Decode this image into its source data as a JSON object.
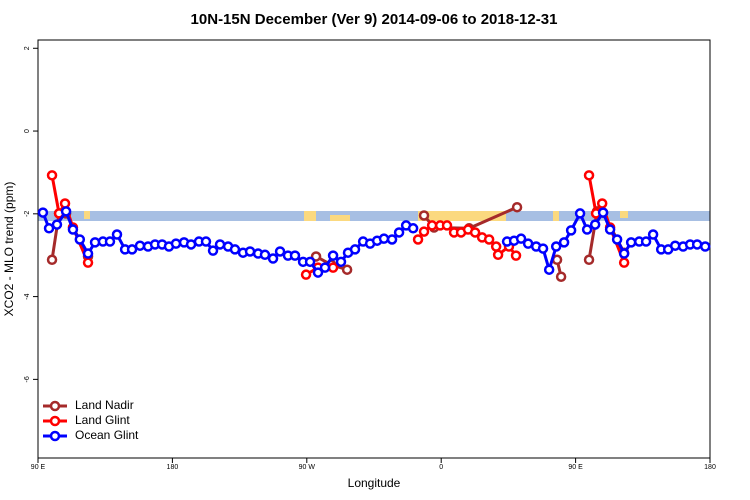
{
  "chart_data": {
    "type": "line",
    "title": "10N-15N December (Ver 9)   2014-09-06 to 2018-12-31",
    "x_label": "Longitude",
    "y_label": "XCO2 - MLO trend (ppm)",
    "xlim": [
      90,
      540
    ],
    "ylim": [
      -7.9,
      2.2
    ],
    "xticks": [
      {
        "value": 90,
        "label": "90 E"
      },
      180,
      {
        "value": 270,
        "label": "90 W"
      },
      {
        "value": 360,
        "label": "0"
      },
      {
        "value": 450,
        "label": "90 E"
      },
      {
        "value": 540,
        "label": "180"
      }
    ],
    "yticks": [
      2,
      0,
      -2,
      -4,
      -6
    ],
    "legend": "bottom-left",
    "series": [
      {
        "name": "Land Nadir",
        "color": "#a52a2a",
        "x": [
          99.4,
          104.1,
          108.8,
          123.5,
          null,
          276.2,
          286.3,
          297,
          null,
          348.5,
          355.2,
          378.7,
          410.8,
          null,
          437.6,
          440.3,
          null,
          459,
          464.4,
          468.4,
          482.5
        ],
        "values": [
          -3.11,
          -1.99,
          -1.99,
          -3.03,
          null,
          -3.03,
          -3.23,
          -3.35,
          null,
          -2.04,
          -2.33,
          -2.35,
          -1.84,
          null,
          -3.11,
          -3.52,
          null,
          -3.11,
          -1.94,
          -1.97,
          -2.94
        ]
      },
      {
        "name": "Land Glint",
        "color": "#ff0000",
        "x": [
          99.4,
          104.1,
          108.1,
          113.4,
          123.5,
          null,
          269.5,
          277.5,
          287.6,
          null,
          344.5,
          348.5,
          353.9,
          359.3,
          363.9,
          368.6,
          373.3,
          378,
          382.7,
          387.4,
          392.1,
          396.8,
          398.1,
          405.4,
          410.1,
          null,
          459,
          463.7,
          467.8,
          473.1,
          482.5
        ],
        "values": [
          -1.07,
          -1.99,
          -1.75,
          -2.33,
          -3.18,
          null,
          -3.47,
          -3.3,
          -3.3,
          null,
          -2.62,
          -2.43,
          -2.28,
          -2.28,
          -2.28,
          -2.45,
          -2.45,
          -2.38,
          -2.45,
          -2.57,
          -2.62,
          -2.79,
          -2.99,
          -2.79,
          -3.01,
          null,
          -1.07,
          -1.99,
          -1.75,
          -2.33,
          -3.18
        ]
      },
      {
        "name": "Ocean Glint",
        "color": "#0000ff",
        "x": [
          93.3,
          97.4,
          102.7,
          108.8,
          113.4,
          118,
          123.5,
          128.2,
          133.5,
          138.2,
          142.9,
          148.3,
          153,
          158.3,
          163.7,
          168.4,
          173.1,
          177.7,
          182.4,
          187.8,
          192.5,
          197.8,
          202.5,
          207.2,
          211.9,
          217.3,
          221.9,
          227.3,
          232,
          237.4,
          242,
          247.4,
          252.1,
          257.4,
          262.1,
          267.5,
          272.2,
          277.5,
          282.2,
          287.6,
          292.9,
          297.6,
          302.3,
          307.7,
          312.4,
          317.1,
          321.7,
          327.1,
          331.8,
          336.5,
          341.2,
          null,
          404.1,
          408.8,
          413.5,
          418.2,
          423.6,
          428.2,
          432.3,
          437,
          442.3,
          447,
          453,
          457.7,
          463.1,
          468.4,
          473.1,
          477.8,
          482.5,
          487.2,
          492.6,
          497.2,
          501.9,
          507.3,
          512,
          516.7,
          522,
          526.7,
          531.4,
          536.8
        ],
        "values": [
          -1.97,
          -2.35,
          -2.26,
          -1.94,
          -2.38,
          -2.62,
          -2.96,
          -2.69,
          -2.67,
          -2.67,
          -2.5,
          -2.86,
          -2.86,
          -2.77,
          -2.79,
          -2.74,
          -2.74,
          -2.79,
          -2.72,
          -2.69,
          -2.74,
          -2.67,
          -2.67,
          -2.89,
          -2.74,
          -2.79,
          -2.86,
          -2.94,
          -2.91,
          -2.96,
          -2.99,
          -3.08,
          -2.91,
          -3.01,
          -3.01,
          -3.16,
          -3.16,
          -3.42,
          -3.3,
          -3.01,
          -3.16,
          -2.94,
          -2.86,
          -2.67,
          -2.72,
          -2.65,
          -2.6,
          -2.62,
          -2.45,
          -2.28,
          -2.35,
          null,
          -2.67,
          -2.65,
          -2.6,
          -2.72,
          -2.79,
          -2.84,
          -3.35,
          -2.79,
          -2.69,
          -2.4,
          -1.99,
          -2.38,
          -2.26,
          -1.97,
          -2.38,
          -2.62,
          -2.96,
          -2.69,
          -2.67,
          -2.67,
          -2.5,
          -2.86,
          -2.86,
          -2.77,
          -2.79,
          -2.74,
          -2.74,
          -2.79
        ]
      }
    ]
  }
}
